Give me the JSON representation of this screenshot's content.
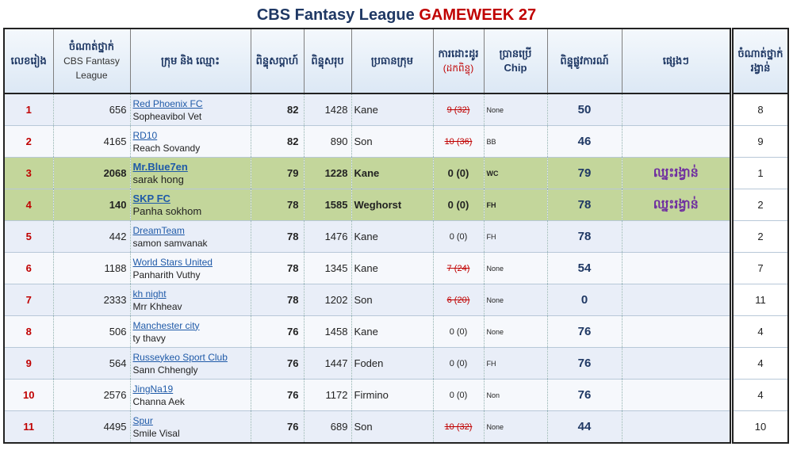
{
  "title": {
    "prefix": "CBS Fantasy League",
    "gameweek": "GAMEWEEK 27"
  },
  "headers": {
    "rank": "លេខរៀង",
    "cbs_rank_km": "ចំណាត់ថ្នាក់",
    "cbs_rank_en": "CBS Fantasy League",
    "team": "ក្រុម និង ឈ្មោះ",
    "gw_points": "ពិន្ទុសប្តាហ៍",
    "total_points": "ពិន្ទុសរុប",
    "captain": "ប្រធានក្រុម",
    "transfers_km": "ការដោះដូរ",
    "transfers_sub": "(ដកពិន្ទុ)",
    "chip_km": "ប្រានប្រើ",
    "chip_en": "Chip",
    "final_points": "ពិន្ទុផ្លូវការណ៍",
    "other": "ផ្សេងៗ",
    "prize_rank": "ចំណាត់ថ្នាក់រង្វាន់"
  },
  "rows": [
    {
      "rank": "1",
      "cbs_rank": "656",
      "team": "Red Phoenix FC",
      "manager": "Sopheavibol Vet",
      "gw_points": "82",
      "total": "1428",
      "captain": "Kane",
      "transfers": "9 (32)",
      "transfers_penalized": true,
      "chip": "None",
      "final": "50",
      "note": "",
      "prize_rank": "8"
    },
    {
      "rank": "2",
      "cbs_rank": "4165",
      "team": "RD10",
      "manager": "Reach Sovandy",
      "gw_points": "82",
      "total": "890",
      "captain": "Son",
      "transfers": "10 (36)",
      "transfers_penalized": true,
      "chip": "BB",
      "final": "46",
      "note": "",
      "prize_rank": "9"
    },
    {
      "rank": "3",
      "cbs_rank": "2068",
      "team": "Mr.Blue7en",
      "manager": "sarak hong",
      "gw_points": "79",
      "total": "1228",
      "captain": "Kane",
      "transfers": "0 (0)",
      "transfers_penalized": false,
      "chip": "WC",
      "final": "79",
      "note": "ឈ្នះរង្វាន់",
      "prize_rank": "1",
      "highlight": true
    },
    {
      "rank": "4",
      "cbs_rank": "140",
      "team": "SKP FC",
      "manager": "Panha sokhom",
      "gw_points": "78",
      "total": "1585",
      "captain": "Weghorst",
      "transfers": "0 (0)",
      "transfers_penalized": false,
      "chip": "FH",
      "final": "78",
      "note": "ឈ្នះរង្វាន់",
      "prize_rank": "2",
      "highlight": true
    },
    {
      "rank": "5",
      "cbs_rank": "442",
      "team": "DreamTeam",
      "manager": "samon samvanak",
      "gw_points": "78",
      "total": "1476",
      "captain": "Kane",
      "transfers": "0 (0)",
      "transfers_penalized": false,
      "chip": "FH",
      "final": "78",
      "note": "",
      "prize_rank": "2"
    },
    {
      "rank": "6",
      "cbs_rank": "1188",
      "team": "World Stars United",
      "manager": "Panharith Vuthy",
      "gw_points": "78",
      "total": "1345",
      "captain": "Kane",
      "transfers": "7 (24)",
      "transfers_penalized": true,
      "chip": "None",
      "final": "54",
      "note": "",
      "prize_rank": "7"
    },
    {
      "rank": "7",
      "cbs_rank": "2333",
      "team": "kh night",
      "manager": "Mrr Khheav",
      "gw_points": "78",
      "total": "1202",
      "captain": "Son",
      "transfers": "6 (20)",
      "transfers_penalized": true,
      "chip": "None",
      "final": "0",
      "note": "",
      "prize_rank": "11"
    },
    {
      "rank": "8",
      "cbs_rank": "506",
      "team": "Manchester city",
      "manager": "ty thavy",
      "gw_points": "76",
      "total": "1458",
      "captain": "Kane",
      "transfers": "0 (0)",
      "transfers_penalized": false,
      "chip": "None",
      "final": "76",
      "note": "",
      "prize_rank": "4"
    },
    {
      "rank": "9",
      "cbs_rank": "564",
      "team": "Russeykeo Sport Club",
      "manager": "Sann Chhengly",
      "gw_points": "76",
      "total": "1447",
      "captain": "Foden",
      "transfers": "0 (0)",
      "transfers_penalized": false,
      "chip": "FH",
      "final": "76",
      "note": "",
      "prize_rank": "4"
    },
    {
      "rank": "10",
      "cbs_rank": "2576",
      "team": "JingNa19",
      "manager": "Channa Aek",
      "gw_points": "76",
      "total": "1172",
      "captain": "Firmino",
      "transfers": "0 (0)",
      "transfers_penalized": false,
      "chip": "Non",
      "final": "76",
      "note": "",
      "prize_rank": "4"
    },
    {
      "rank": "11",
      "cbs_rank": "4495",
      "team": "Spur",
      "manager": "Smile Visal",
      "gw_points": "76",
      "total": "689",
      "captain": "Son",
      "transfers": "10 (32)",
      "transfers_penalized": true,
      "chip": "None",
      "final": "44",
      "note": "",
      "prize_rank": "10"
    }
  ]
}
